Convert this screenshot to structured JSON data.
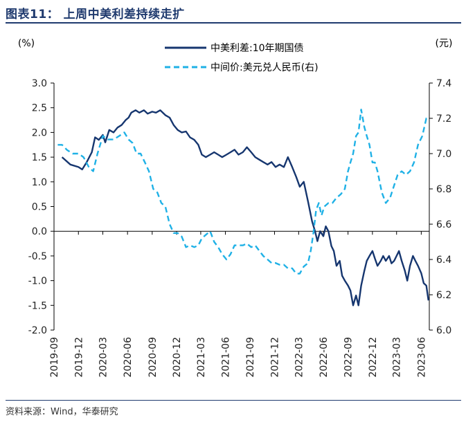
{
  "figure": {
    "title": "图表11：  上周中美利差持续走扩",
    "source": "资料来源：Wind，华泰研究"
  },
  "colors": {
    "title": "#1f3a6e",
    "spread_line": "#16366f",
    "fx_line": "#1fb1e6",
    "axis": "#000000"
  },
  "chart_data": {
    "type": "line",
    "left_axis": {
      "unit_label": "(%)",
      "ylim": [
        -2.0,
        3.0
      ],
      "ticks": [
        "3.0",
        "2.5",
        "2.0",
        "1.5",
        "1.0",
        "0.5",
        "0.0",
        "-0.5",
        "-1.0",
        "-1.5",
        "-2.0"
      ]
    },
    "right_axis": {
      "unit_label": "(元)",
      "ylim": [
        6.0,
        7.4
      ],
      "ticks": [
        "7.4",
        "7.2",
        "7.0",
        "6.8",
        "6.6",
        "6.4",
        "6.2",
        "6.0"
      ]
    },
    "x_axis": {
      "range": [
        "2019-09",
        "2023-07"
      ],
      "ticks": [
        "2019-09",
        "2019-12",
        "2020-03",
        "2020-06",
        "2020-09",
        "2020-12",
        "2021-03",
        "2021-06",
        "2021-09",
        "2021-12",
        "2022-03",
        "2022-06",
        "2022-09",
        "2022-12",
        "2023-03",
        "2023-06"
      ]
    },
    "legend_position": "top-center",
    "series": [
      {
        "name": "中美利差:10年期国债",
        "axis": "left",
        "style": "solid",
        "x": [
          "2019-10-01",
          "2019-11-01",
          "2019-12-01",
          "2019-12-15",
          "2020-01-01",
          "2020-01-20",
          "2020-02-01",
          "2020-02-15",
          "2020-03-01",
          "2020-03-10",
          "2020-03-25",
          "2020-04-10",
          "2020-04-25",
          "2020-05-10",
          "2020-05-25",
          "2020-06-05",
          "2020-06-15",
          "2020-07-01",
          "2020-07-15",
          "2020-08-01",
          "2020-08-15",
          "2020-09-01",
          "2020-09-15",
          "2020-10-01",
          "2020-10-20",
          "2020-11-05",
          "2020-11-20",
          "2020-12-05",
          "2020-12-20",
          "2021-01-05",
          "2021-01-20",
          "2021-02-05",
          "2021-02-20",
          "2021-03-05",
          "2021-03-20",
          "2021-04-05",
          "2021-04-20",
          "2021-05-05",
          "2021-05-20",
          "2021-06-05",
          "2021-06-20",
          "2021-07-05",
          "2021-07-20",
          "2021-08-05",
          "2021-08-20",
          "2021-09-05",
          "2021-09-20",
          "2021-10-05",
          "2021-10-20",
          "2021-11-05",
          "2021-11-20",
          "2021-12-05",
          "2021-12-20",
          "2022-01-05",
          "2022-01-20",
          "2022-02-05",
          "2022-02-20",
          "2022-03-05",
          "2022-03-20",
          "2022-04-05",
          "2022-04-20",
          "2022-05-01",
          "2022-05-10",
          "2022-05-20",
          "2022-06-01",
          "2022-06-10",
          "2022-06-20",
          "2022-07-01",
          "2022-07-10",
          "2022-07-20",
          "2022-08-01",
          "2022-08-10",
          "2022-08-20",
          "2022-09-01",
          "2022-09-10",
          "2022-09-20",
          "2022-10-01",
          "2022-10-10",
          "2022-10-20",
          "2022-11-01",
          "2022-11-10",
          "2022-11-20",
          "2022-12-01",
          "2022-12-10",
          "2022-12-20",
          "2023-01-01",
          "2023-01-10",
          "2023-01-20",
          "2023-02-01",
          "2023-02-10",
          "2023-02-20",
          "2023-03-01",
          "2023-03-10",
          "2023-03-20",
          "2023-04-01",
          "2023-04-10",
          "2023-04-20",
          "2023-05-01",
          "2023-05-10",
          "2023-05-20",
          "2023-06-01",
          "2023-06-10",
          "2023-06-20",
          "2023-06-28"
        ],
        "values": [
          1.5,
          1.35,
          1.3,
          1.25,
          1.4,
          1.6,
          1.9,
          1.85,
          1.95,
          1.8,
          2.05,
          2.0,
          2.1,
          2.15,
          2.25,
          2.3,
          2.4,
          2.45,
          2.4,
          2.45,
          2.38,
          2.42,
          2.4,
          2.45,
          2.35,
          2.3,
          2.15,
          2.05,
          2.0,
          2.02,
          1.9,
          1.85,
          1.75,
          1.55,
          1.5,
          1.55,
          1.6,
          1.55,
          1.5,
          1.55,
          1.6,
          1.65,
          1.55,
          1.6,
          1.7,
          1.6,
          1.5,
          1.45,
          1.4,
          1.35,
          1.4,
          1.3,
          1.35,
          1.3,
          1.5,
          1.3,
          1.1,
          0.9,
          1.0,
          0.6,
          0.2,
          0.0,
          -0.2,
          0.0,
          -0.1,
          0.1,
          0.0,
          -0.3,
          -0.4,
          -0.7,
          -0.6,
          -0.9,
          -1.0,
          -1.1,
          -1.2,
          -1.5,
          -1.3,
          -1.5,
          -1.1,
          -0.8,
          -0.6,
          -0.5,
          -0.4,
          -0.55,
          -0.7,
          -0.6,
          -0.5,
          -0.6,
          -0.5,
          -0.65,
          -0.6,
          -0.5,
          -0.4,
          -0.6,
          -0.8,
          -1.0,
          -0.7,
          -0.5,
          -0.6,
          -0.7,
          -0.85,
          -1.05,
          -1.1,
          -1.4
        ]
      },
      {
        "name": "中间价:美元兑人民币(右)",
        "axis": "right",
        "style": "dashed",
        "x": [
          "2019-09-15",
          "2019-10-01",
          "2019-10-20",
          "2019-11-10",
          "2019-12-01",
          "2019-12-20",
          "2020-01-10",
          "2020-01-25",
          "2020-02-10",
          "2020-03-01",
          "2020-03-20",
          "2020-04-10",
          "2020-05-01",
          "2020-05-20",
          "2020-06-05",
          "2020-06-20",
          "2020-07-05",
          "2020-07-20",
          "2020-08-05",
          "2020-08-20",
          "2020-09-05",
          "2020-09-20",
          "2020-10-05",
          "2020-10-20",
          "2020-11-05",
          "2020-11-20",
          "2020-12-05",
          "2020-12-20",
          "2021-01-05",
          "2021-01-20",
          "2021-02-05",
          "2021-02-20",
          "2021-03-05",
          "2021-03-20",
          "2021-04-05",
          "2021-04-20",
          "2021-05-05",
          "2021-05-20",
          "2021-06-05",
          "2021-06-20",
          "2021-07-05",
          "2021-07-20",
          "2021-08-05",
          "2021-08-20",
          "2021-09-05",
          "2021-09-20",
          "2021-10-05",
          "2021-10-20",
          "2021-11-05",
          "2021-11-20",
          "2021-12-05",
          "2021-12-20",
          "2022-01-05",
          "2022-01-20",
          "2022-02-05",
          "2022-02-20",
          "2022-03-05",
          "2022-03-20",
          "2022-04-05",
          "2022-04-15",
          "2022-04-25",
          "2022-05-05",
          "2022-05-15",
          "2022-05-25",
          "2022-06-05",
          "2022-06-20",
          "2022-07-05",
          "2022-07-20",
          "2022-08-05",
          "2022-08-20",
          "2022-09-01",
          "2022-09-10",
          "2022-09-20",
          "2022-10-01",
          "2022-10-10",
          "2022-10-20",
          "2022-11-01",
          "2022-11-10",
          "2022-11-20",
          "2022-12-01",
          "2022-12-10",
          "2022-12-20",
          "2023-01-05",
          "2023-01-20",
          "2023-02-05",
          "2023-02-20",
          "2023-03-05",
          "2023-03-20",
          "2023-04-05",
          "2023-04-20",
          "2023-05-05",
          "2023-05-20",
          "2023-06-05",
          "2023-06-20",
          "2023-06-30"
        ],
        "values": [
          7.05,
          7.05,
          7.02,
          7.0,
          7.0,
          6.98,
          6.92,
          6.9,
          7.0,
          7.1,
          7.08,
          7.08,
          7.1,
          7.12,
          7.08,
          7.06,
          7.0,
          7.0,
          6.95,
          6.9,
          6.8,
          6.78,
          6.72,
          6.7,
          6.6,
          6.55,
          6.55,
          6.53,
          6.47,
          6.48,
          6.47,
          6.48,
          6.52,
          6.54,
          6.56,
          6.5,
          6.47,
          6.43,
          6.4,
          6.43,
          6.48,
          6.48,
          6.48,
          6.49,
          6.47,
          6.48,
          6.45,
          6.42,
          6.4,
          6.38,
          6.38,
          6.37,
          6.37,
          6.35,
          6.35,
          6.32,
          6.32,
          6.36,
          6.38,
          6.45,
          6.55,
          6.68,
          6.72,
          6.65,
          6.7,
          6.72,
          6.72,
          6.75,
          6.77,
          6.8,
          6.9,
          6.95,
          7.0,
          7.1,
          7.12,
          7.25,
          7.15,
          7.1,
          7.05,
          6.95,
          6.95,
          6.9,
          6.78,
          6.72,
          6.75,
          6.82,
          6.88,
          6.9,
          6.88,
          6.9,
          6.95,
          7.05,
          7.1,
          7.2,
          7.2
        ]
      }
    ]
  }
}
